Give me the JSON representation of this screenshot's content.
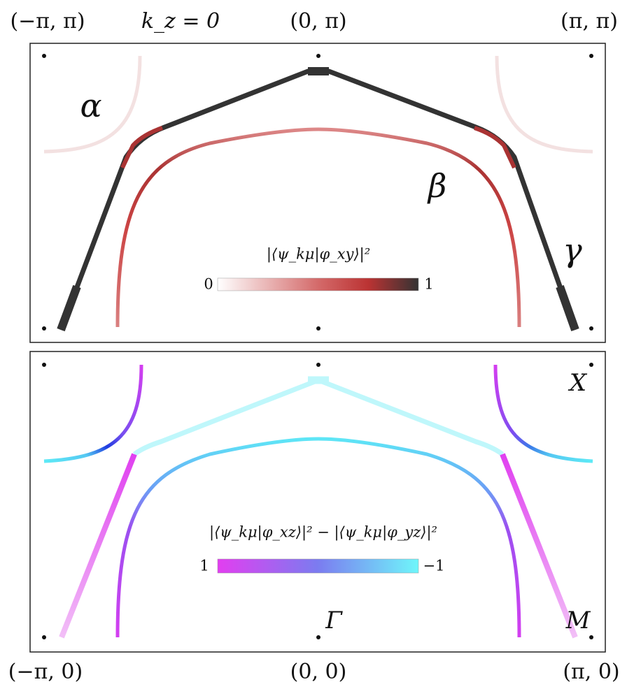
{
  "top_panel": {
    "corner_labels": [
      "(−π, π)",
      "(0, π)",
      "(π, π)"
    ],
    "note": "k_z = 0",
    "band_labels": [
      "α",
      "β",
      "γ"
    ],
    "colorbar": {
      "title": "|⟨ψ_kμ|φ_xy⟩|²",
      "min_label": "0",
      "max_label": "1"
    }
  },
  "bottom_panel": {
    "corner_labels": [
      "(−π, 0)",
      "(0, 0)",
      "(π, 0)"
    ],
    "point_labels": [
      "X",
      "Γ",
      "M"
    ],
    "colorbar": {
      "title": "|⟨ψ_kμ|φ_xz⟩|² − |⟨ψ_kμ|φ_yz⟩|²",
      "min_label": "1",
      "max_label": "−1"
    }
  }
}
